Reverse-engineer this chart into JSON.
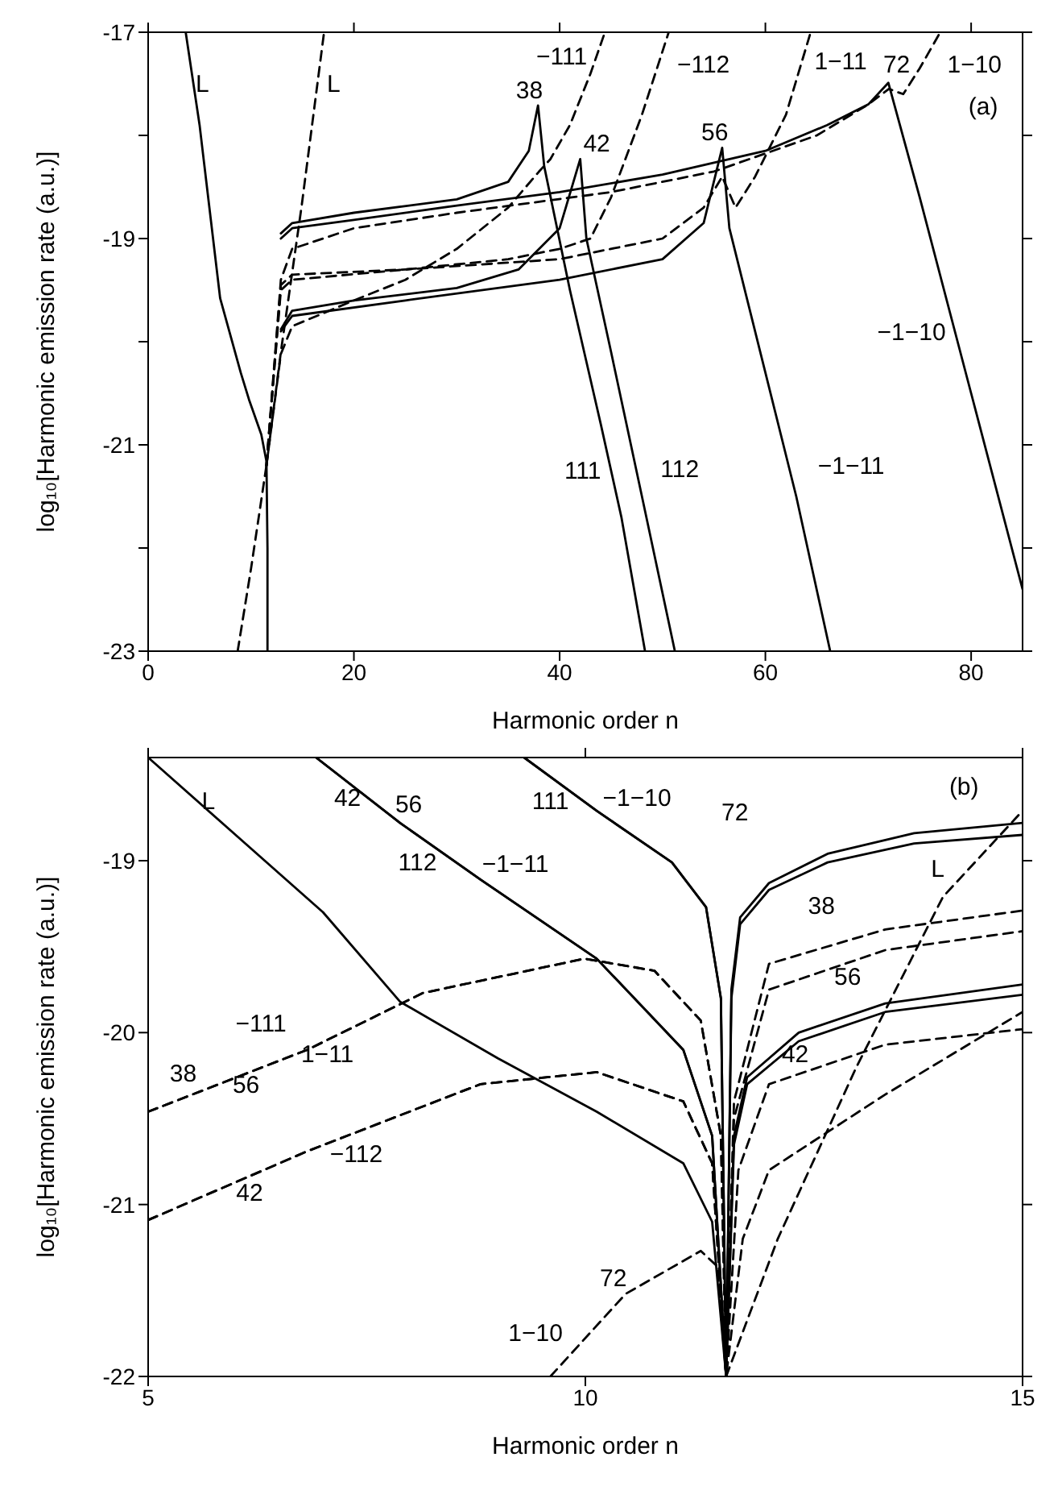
{
  "chart_data": [
    {
      "type": "line",
      "xlabel": "Harmonic order n",
      "ylabel": "log₁₀[Harmonic emission rate (a.u.)]",
      "xlim": [
        0,
        85
      ],
      "ylim": [
        -23,
        -17
      ],
      "xticks": [
        0,
        20,
        40,
        60,
        80
      ],
      "yticks": [
        -23,
        {
          "value": -22,
          "label": null
        },
        -21,
        {
          "value": -20,
          "label": null
        },
        -19,
        {
          "value": -18,
          "label": null
        },
        -17
      ],
      "marker": "none",
      "series": [
        {
          "color": "#000000",
          "line_style": "solid",
          "x": [
            3.65,
            5,
            7,
            9,
            9.8,
            11,
            11.5,
            11.6,
            11.6
          ],
          "values": [
            -17,
            -17.9,
            -19.58,
            -20.3,
            -20.56,
            -20.9,
            -21.16,
            -22,
            -23
          ]
        },
        {
          "color": "#000000",
          "line_style": "dashed",
          "x": [
            8.7,
            10,
            11.5,
            12.9,
            14.9,
            17.1
          ],
          "values": [
            -23,
            -22.2,
            -21.2,
            -20.1,
            -18.7,
            -17
          ]
        },
        {
          "color": "#000000",
          "line_style": "solid",
          "x": [
            12.9,
            14,
            20,
            30,
            35,
            37,
            37.9,
            38.5,
            41,
            44,
            46,
            48.3
          ],
          "values": [
            -18.95,
            -18.85,
            -18.75,
            -18.62,
            -18.45,
            -18.15,
            -17.71,
            -18.3,
            -19.5,
            -20.8,
            -21.7,
            -23
          ]
        },
        {
          "color": "#000000",
          "line_style": "solid",
          "x": [
            12.9,
            14,
            20,
            30,
            40,
            50,
            60,
            66,
            70,
            71.95,
            75,
            80,
            85
          ],
          "values": [
            -19.0,
            -18.9,
            -18.82,
            -18.68,
            -18.55,
            -18.38,
            -18.15,
            -17.9,
            -17.7,
            -17.49,
            -18.6,
            -20.5,
            -22.4
          ]
        },
        {
          "color": "#000000",
          "line_style": "solid",
          "x": [
            12.9,
            14,
            20,
            30,
            36,
            40,
            42,
            42.6,
            45,
            48,
            51.2
          ],
          "values": [
            -19.88,
            -19.7,
            -19.6,
            -19.48,
            -19.3,
            -18.9,
            -18.23,
            -19.0,
            -20.1,
            -21.5,
            -23
          ]
        },
        {
          "color": "#000000",
          "line_style": "solid",
          "x": [
            12.9,
            14,
            25,
            40,
            50,
            54,
            55.8,
            56.5,
            60,
            63,
            66.3
          ],
          "values": [
            -19.9,
            -19.75,
            -19.6,
            -19.4,
            -19.2,
            -18.85,
            -18.12,
            -18.9,
            -20.3,
            -21.5,
            -23
          ]
        },
        {
          "color": "#000000",
          "line_style": "dashed",
          "x": [
            11.5,
            12.9,
            14,
            20,
            25,
            30,
            35,
            38,
            39.1,
            41,
            43,
            44.4
          ],
          "values": [
            -21.2,
            -20.12,
            -19.85,
            -19.6,
            -19.4,
            -19.1,
            -18.7,
            -18.35,
            -18.23,
            -17.9,
            -17.4,
            -17
          ]
        },
        {
          "color": "#000000",
          "line_style": "dashed",
          "x": [
            11.5,
            12.9,
            14,
            25,
            35,
            40,
            43,
            45,
            48,
            50.6
          ],
          "values": [
            -21.2,
            -19.5,
            -19.4,
            -19.3,
            -19.2,
            -19.1,
            -19.0,
            -18.6,
            -17.8,
            -17
          ]
        },
        {
          "color": "#000000",
          "line_style": "dashed",
          "x": [
            11.5,
            12.9,
            14,
            25,
            40,
            50,
            54,
            55.8,
            57.1,
            59,
            62,
            64.4
          ],
          "values": [
            -21.2,
            -19.45,
            -19.35,
            -19.3,
            -19.2,
            -19.0,
            -18.7,
            -18.4,
            -18.7,
            -18.4,
            -17.8,
            -17
          ]
        },
        {
          "color": "#000000",
          "line_style": "dashed",
          "x": [
            11.5,
            12.9,
            14,
            20,
            30,
            45,
            55,
            65,
            70,
            72,
            73.4,
            75,
            77
          ],
          "values": [
            -21.2,
            -19.4,
            -19.1,
            -18.9,
            -18.75,
            -18.55,
            -18.35,
            -18.0,
            -17.7,
            -17.55,
            -17.6,
            -17.35,
            -17
          ]
        }
      ],
      "annotations": [
        "(a)",
        "L",
        "L",
        "−111",
        "38",
        "42",
        "−112",
        "56",
        "1−11",
        "72",
        "1−10",
        "111",
        "112",
        "−1−11",
        "−1−10"
      ]
    },
    {
      "type": "line",
      "xlabel": "Harmonic order n",
      "ylabel": "log₁₀[Harmonic emission rate (a.u.)]",
      "xlim": [
        5,
        15
      ],
      "ylim": [
        -22,
        -18.4
      ],
      "xticks": [
        5,
        10,
        15
      ],
      "yticks": [
        -22,
        -21,
        -20,
        -19
      ],
      "marker": "none",
      "series": [
        {
          "color": "#000000",
          "line_style": "solid",
          "x": [
            5,
            6,
            7,
            7.88,
            9,
            10.13,
            11.12,
            11.45,
            11.61
          ],
          "values": [
            -18.4,
            -18.85,
            -19.3,
            -19.82,
            -20.15,
            -20.46,
            -20.76,
            -21.1,
            -22
          ]
        },
        {
          "color": "#000000",
          "line_style": "solid",
          "x": [
            6.92,
            7.88,
            8.8,
            10.13,
            11.12,
            11.45,
            11.61,
            11.7,
            11.85,
            12.44,
            13.43,
            15
          ],
          "values": [
            -18.4,
            -18.78,
            -19.11,
            -19.57,
            -20.1,
            -20.6,
            -22,
            -20.6,
            -20.26,
            -20.0,
            -19.83,
            -19.72
          ]
        },
        {
          "color": "#000000",
          "line_style": "solid",
          "x": [
            6.92,
            7.88,
            8.8,
            10.13,
            11.12,
            11.45,
            11.61,
            11.7,
            11.85,
            12.44,
            13.43,
            15
          ],
          "values": [
            -18.4,
            -18.78,
            -19.11,
            -19.57,
            -20.1,
            -20.6,
            -22,
            -20.65,
            -20.3,
            -20.05,
            -19.88,
            -19.78
          ]
        },
        {
          "color": "#000000",
          "line_style": "solid",
          "x": [
            9.3,
            10.13,
            10.99,
            11.38,
            11.55,
            11.61,
            11.67,
            11.77,
            12.1,
            12.77,
            13.76,
            15
          ],
          "values": [
            -18.4,
            -18.71,
            -19.01,
            -19.27,
            -19.8,
            -22,
            -19.8,
            -19.37,
            -19.17,
            -19.01,
            -18.9,
            -18.85
          ]
        },
        {
          "color": "#000000",
          "line_style": "solid",
          "x": [
            9.3,
            10.13,
            10.99,
            11.38,
            11.55,
            11.61,
            11.67,
            11.77,
            12.1,
            12.77,
            13.76,
            15
          ],
          "values": [
            -18.4,
            -18.71,
            -19.01,
            -19.27,
            -19.8,
            -22,
            -19.75,
            -19.33,
            -19.13,
            -18.96,
            -18.84,
            -18.78
          ]
        },
        {
          "color": "#000000",
          "line_style": "dashed",
          "x": [
            5,
            6.82,
            8.14,
            9.99,
            10.79,
            11.32,
            11.55,
            11.61,
            11.7,
            12.1,
            13.43,
            15
          ],
          "values": [
            -20.46,
            -20.1,
            -19.77,
            -19.57,
            -19.64,
            -19.93,
            -20.6,
            -22,
            -20.4,
            -19.6,
            -19.4,
            -19.29
          ]
        },
        {
          "color": "#000000",
          "line_style": "dashed",
          "x": [
            5,
            6.82,
            8.14,
            9.99,
            10.79,
            11.32,
            11.55,
            11.61,
            11.7,
            12.1,
            13.43,
            15
          ],
          "values": [
            -20.46,
            -20.1,
            -19.77,
            -19.57,
            -19.64,
            -19.93,
            -20.6,
            -22,
            -20.5,
            -19.75,
            -19.52,
            -19.41
          ]
        },
        {
          "color": "#000000",
          "line_style": "dashed",
          "x": [
            5,
            6.82,
            8.8,
            10.13,
            11.12,
            11.45,
            11.61,
            11.75,
            12.1,
            13.43,
            15
          ],
          "values": [
            -21.09,
            -20.69,
            -20.3,
            -20.23,
            -20.4,
            -20.76,
            -22,
            -20.8,
            -20.3,
            -20.07,
            -19.98
          ]
        },
        {
          "color": "#000000",
          "line_style": "dashed",
          "x": [
            5,
            6.82,
            8.8,
            10.13,
            11.12,
            11.45,
            11.61,
            11.8,
            12.1,
            13.43,
            15
          ],
          "values": [
            -21.09,
            -20.69,
            -20.3,
            -20.23,
            -20.4,
            -20.76,
            -22,
            -21.2,
            -20.8,
            -20.36,
            -19.88
          ]
        },
        {
          "color": "#000000",
          "line_style": "dashed",
          "x": [
            9.6,
            10.46,
            11.32,
            11.51,
            11.61
          ],
          "values": [
            -22,
            -21.52,
            -21.27,
            -21.36,
            -22
          ]
        },
        {
          "color": "#000000",
          "line_style": "dashed",
          "x": [
            11.61,
            12.2,
            13.1,
            14.09,
            15
          ],
          "values": [
            -22,
            -21.2,
            -20.2,
            -19.21,
            -18.71
          ]
        }
      ],
      "annotations": [
        "(b)",
        "L",
        "42",
        "56",
        "111",
        "−1−10",
        "72",
        "112",
        "−1−11",
        "38",
        "L",
        "56",
        "42",
        "−111",
        "1−11",
        "38",
        "56",
        "−112",
        "42",
        "72",
        "1−10"
      ]
    }
  ]
}
